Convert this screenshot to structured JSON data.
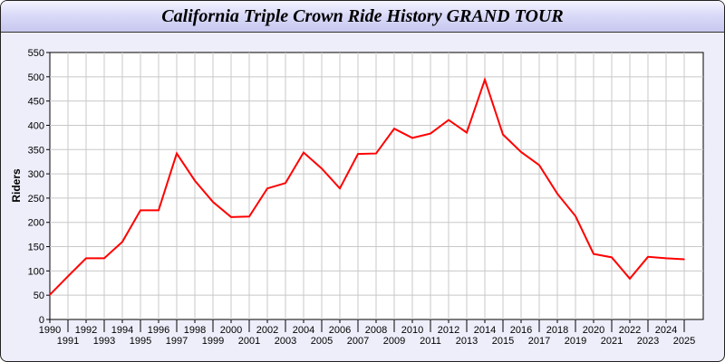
{
  "chart_data": {
    "type": "line",
    "title": "California Triple Crown Ride History GRAND TOUR",
    "xlabel": "",
    "ylabel": "Riders",
    "ylim": [
      0,
      550
    ],
    "yticks": [
      0,
      50,
      100,
      150,
      200,
      250,
      300,
      350,
      400,
      450,
      500,
      550
    ],
    "grid": true,
    "line_color": "#ff0000",
    "x": [
      1990,
      1991,
      1992,
      1993,
      1994,
      1995,
      1996,
      1997,
      1998,
      1999,
      2000,
      2001,
      2002,
      2003,
      2004,
      2005,
      2006,
      2007,
      2008,
      2009,
      2010,
      2011,
      2012,
      2013,
      2014,
      2015,
      2016,
      2017,
      2018,
      2019,
      2020,
      2021,
      2022,
      2023,
      2024,
      2025
    ],
    "values": [
      51,
      89,
      126,
      126,
      160,
      225,
      225,
      342,
      286,
      242,
      211,
      212,
      270,
      281,
      344,
      311,
      270,
      341,
      342,
      393,
      374,
      383,
      411,
      385,
      494,
      381,
      345,
      318,
      259,
      213,
      135,
      128,
      84,
      129,
      126,
      124
    ]
  }
}
